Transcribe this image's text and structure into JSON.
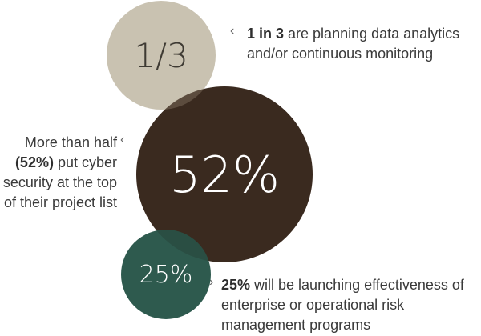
{
  "circles": {
    "one_third": {
      "label": "1/3",
      "color": "#c9c2b1"
    },
    "fifty_two": {
      "label": "52%",
      "color": "#3a2a1f"
    },
    "twenty_five": {
      "label": "25%",
      "color": "#2e5a4e"
    }
  },
  "callouts": {
    "one_third": {
      "chevron": "‹",
      "bold": "1 in 3",
      "rest": " are planning data analytics and/or continuous monitoring"
    },
    "fifty_two": {
      "chevron": "‹",
      "lead": "More than half ",
      "bold": "(52%)",
      "rest": " put cyber security at the top of their project list"
    },
    "twenty_five": {
      "chevron": "›",
      "bold": "25%",
      "rest": " will be launching effectiveness of enterprise or operational risk management programs"
    }
  }
}
